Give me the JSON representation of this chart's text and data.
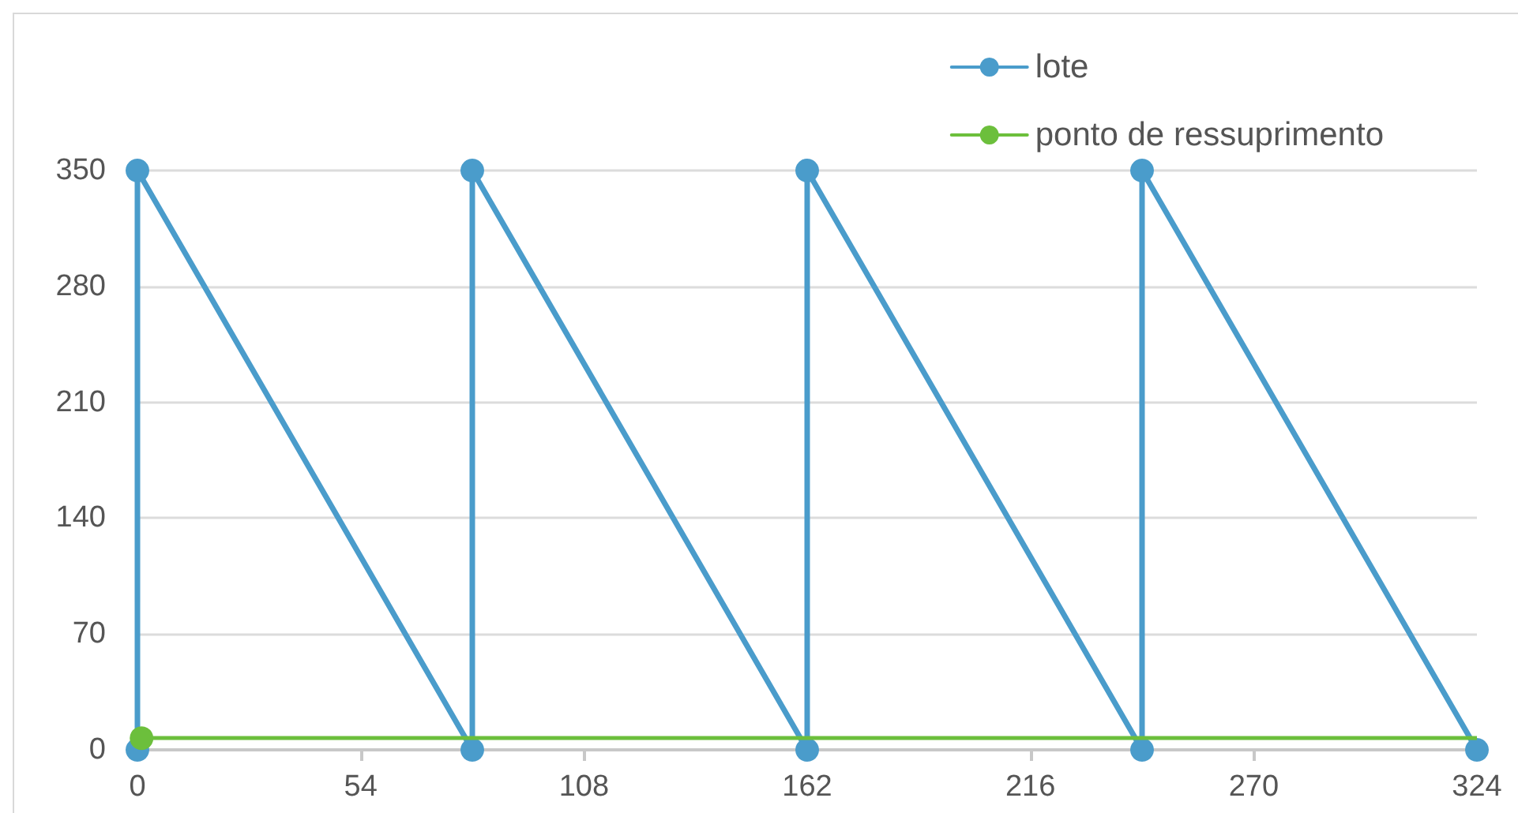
{
  "chart_data": {
    "type": "line",
    "series": [
      {
        "name": "lote",
        "color": "#4a9ccb",
        "x": [
          0,
          0,
          81,
          81,
          162,
          162,
          243,
          243,
          324
        ],
        "values": [
          0,
          350,
          0,
          350,
          0,
          350,
          0,
          350,
          0
        ]
      },
      {
        "name": "ponto de ressuprimento",
        "color": "#6cbf3c",
        "x": [
          1
        ],
        "values": [
          7
        ]
      }
    ],
    "ref_lines": [
      {
        "axis": "y",
        "value": 7,
        "color": "#6cbf3c"
      }
    ],
    "xlim": [
      0,
      324
    ],
    "xticks": [
      0,
      54,
      108,
      162,
      216,
      270,
      324
    ],
    "ylim": [
      0,
      350
    ],
    "yticks": [
      0,
      70,
      140,
      210,
      280,
      350
    ],
    "grid": "y",
    "legend": "top right",
    "marker": "circle"
  }
}
